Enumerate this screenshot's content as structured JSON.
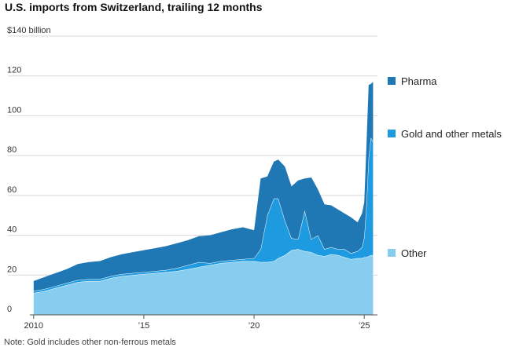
{
  "title": "U.S. imports from Switzerland, trailing 12 months",
  "note": "Note: Gold includes other non-ferrous metals",
  "colors": {
    "pharma": "#1f78b4",
    "gold": "#1e9be0",
    "other": "#86cdef",
    "grid": "#d9d9d9",
    "axis": "#555555"
  },
  "chart_data": {
    "type": "area",
    "stacked": true,
    "y_top_label": "$140 billion",
    "yticks": [
      {
        "value": 0,
        "label": "0"
      },
      {
        "value": 20,
        "label": "20"
      },
      {
        "value": 40,
        "label": "40"
      },
      {
        "value": 60,
        "label": "60"
      },
      {
        "value": 80,
        "label": "80"
      },
      {
        "value": 100,
        "label": "100"
      },
      {
        "value": 120,
        "label": "120"
      },
      {
        "value": 140,
        "label": "$140 billion"
      }
    ],
    "xticks": [
      {
        "value": 2010,
        "label": "2010"
      },
      {
        "value": 2015,
        "label": "’15"
      },
      {
        "value": 2020,
        "label": "’20"
      },
      {
        "value": 2025,
        "label": "’25"
      }
    ],
    "xlim": [
      2009.9,
      2025.6
    ],
    "ylim": [
      0,
      140
    ],
    "grid": true,
    "legend_position": "right",
    "x": [
      2010.0,
      2010.5,
      2011.0,
      2011.5,
      2012.0,
      2012.5,
      2013.0,
      2013.5,
      2014.0,
      2014.5,
      2015.0,
      2015.5,
      2016.0,
      2016.5,
      2017.0,
      2017.5,
      2018.0,
      2018.5,
      2019.0,
      2019.5,
      2020.0,
      2020.3,
      2020.6,
      2020.9,
      2021.1,
      2021.4,
      2021.7,
      2022.0,
      2022.3,
      2022.6,
      2022.9,
      2023.2,
      2023.5,
      2023.8,
      2024.1,
      2024.4,
      2024.7,
      2024.9,
      2025.0,
      2025.1,
      2025.2,
      2025.3,
      2025.4
    ],
    "series": [
      {
        "name": "Other",
        "key": "other",
        "values": [
          11.0,
          12.0,
          13.5,
          15.0,
          16.5,
          17.0,
          17.0,
          18.5,
          19.5,
          20.0,
          20.5,
          21.0,
          21.5,
          22.0,
          23.0,
          24.0,
          25.0,
          26.0,
          26.5,
          27.0,
          27.0,
          26.5,
          26.5,
          27.0,
          28.5,
          30.0,
          32.5,
          33.0,
          32.0,
          31.5,
          30.0,
          29.5,
          30.5,
          30.0,
          29.0,
          28.0,
          28.5,
          28.5,
          29.0,
          29.0,
          29.5,
          30.0,
          30.0
        ]
      },
      {
        "name": "Gold and other metals",
        "key": "gold",
        "values": [
          1.0,
          1.0,
          1.0,
          1.0,
          1.0,
          1.0,
          1.0,
          1.0,
          1.0,
          1.0,
          1.0,
          1.0,
          1.0,
          1.5,
          2.0,
          2.5,
          1.0,
          1.0,
          1.0,
          1.0,
          1.5,
          6.5,
          23.5,
          31.5,
          30.0,
          17.5,
          6.0,
          5.0,
          20.5,
          6.5,
          10.0,
          3.5,
          3.5,
          3.0,
          4.0,
          3.0,
          3.5,
          5.5,
          10.0,
          26.5,
          49.5,
          59.0,
          57.0
        ]
      },
      {
        "name": "Pharma",
        "key": "pharma",
        "values": [
          5.0,
          6.0,
          6.5,
          7.0,
          8.0,
          8.5,
          9.0,
          9.5,
          10.0,
          10.5,
          11.0,
          11.5,
          12.0,
          12.5,
          12.5,
          13.0,
          14.0,
          14.5,
          15.5,
          16.0,
          14.0,
          35.5,
          19.5,
          18.5,
          19.5,
          27.0,
          26.0,
          29.5,
          16.0,
          31.0,
          23.0,
          22.5,
          21.0,
          20.0,
          18.0,
          18.0,
          14.5,
          17.0,
          17.5,
          29.5,
          36.5,
          27.0,
          30.0
        ]
      }
    ]
  }
}
